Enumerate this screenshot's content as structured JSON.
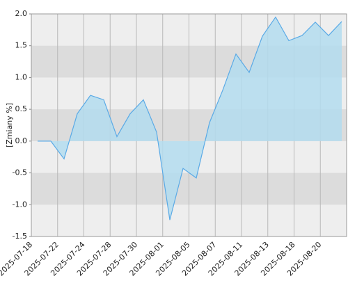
{
  "chart_data": {
    "type": "area",
    "ylabel": "[Zmiany %]",
    "xticks": [
      "2025-07-18",
      "2025-07-22",
      "2025-07-24",
      "2025-07-28",
      "2025-07-30",
      "2025-08-01",
      "2025-08-05",
      "2025-08-07",
      "2025-08-11",
      "2025-08-13",
      "2025-08-18",
      "2025-08-20"
    ],
    "values": [
      0,
      0,
      -0.28,
      0.43,
      0.72,
      0.65,
      0.07,
      0.43,
      0.65,
      0.14,
      -1.24,
      -0.43,
      -0.58,
      0.29,
      0.8,
      1.37,
      1.08,
      1.65,
      1.95,
      1.58,
      1.66,
      1.87,
      1.66,
      1.88
    ],
    "color": "#5aaae6",
    "fill": "#b3dcef",
    "ylim": [
      -1.5,
      2.0
    ],
    "yticks": [
      {
        "value": 2,
        "label": "2.0"
      },
      1.5,
      {
        "value": 1,
        "label": "1.0"
      },
      0.5,
      {
        "value": 0,
        "label": "0.0"
      },
      -0.5,
      {
        "value": -1,
        "label": "-1.0"
      },
      -1.5
    ],
    "grid": true
  }
}
